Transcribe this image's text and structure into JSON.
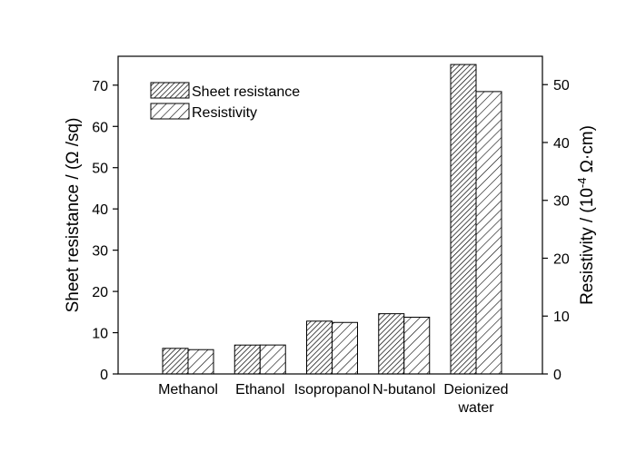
{
  "chart_data": {
    "type": "bar",
    "categories": [
      [
        "Methanol"
      ],
      [
        "Ethanol"
      ],
      [
        "Isopropanol"
      ],
      [
        "N-butanol"
      ],
      [
        "Deionized",
        "water"
      ]
    ],
    "series": [
      {
        "name": "Sheet resistance",
        "axis": "left",
        "pattern": "dense-hatch",
        "values": [
          6.2,
          7.0,
          12.8,
          14.6,
          75.0
        ]
      },
      {
        "name": "Resistivity",
        "axis": "right",
        "pattern": "sparse-hatch",
        "values": [
          4.2,
          5.0,
          8.9,
          9.8,
          48.8
        ]
      }
    ],
    "ylabel": "Sheet resistance / (Ω /sq)",
    "y2label": {
      "base": "Resistivity / (10",
      "exponent": "-4",
      "unit": " Ω·cm)"
    },
    "ylim": [
      0,
      77
    ],
    "y2lim": [
      0,
      54.9
    ],
    "yticks": [
      0,
      10,
      20,
      30,
      40,
      50,
      60,
      70
    ],
    "y2ticks": [
      0,
      10,
      20,
      30,
      40,
      50
    ],
    "legend_position": "top-left",
    "grid": false,
    "colors": {
      "bar_fill": "#ffffff",
      "stroke": "#000000"
    }
  }
}
